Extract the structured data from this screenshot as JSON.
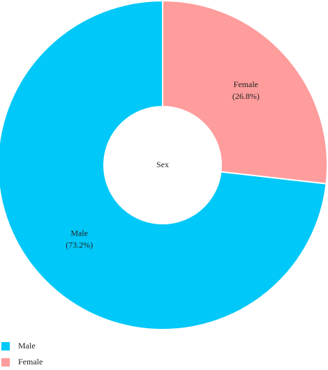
{
  "chart_data": {
    "type": "donut",
    "title": "Sex",
    "categories": [
      "Male",
      "Female"
    ],
    "values": [
      73.2,
      26.8
    ],
    "value_labels": [
      "(73.2%)",
      "(26.8%)"
    ],
    "colors": [
      "#00c8f8",
      "#ff9c9c"
    ],
    "legend": "bottom-left"
  }
}
